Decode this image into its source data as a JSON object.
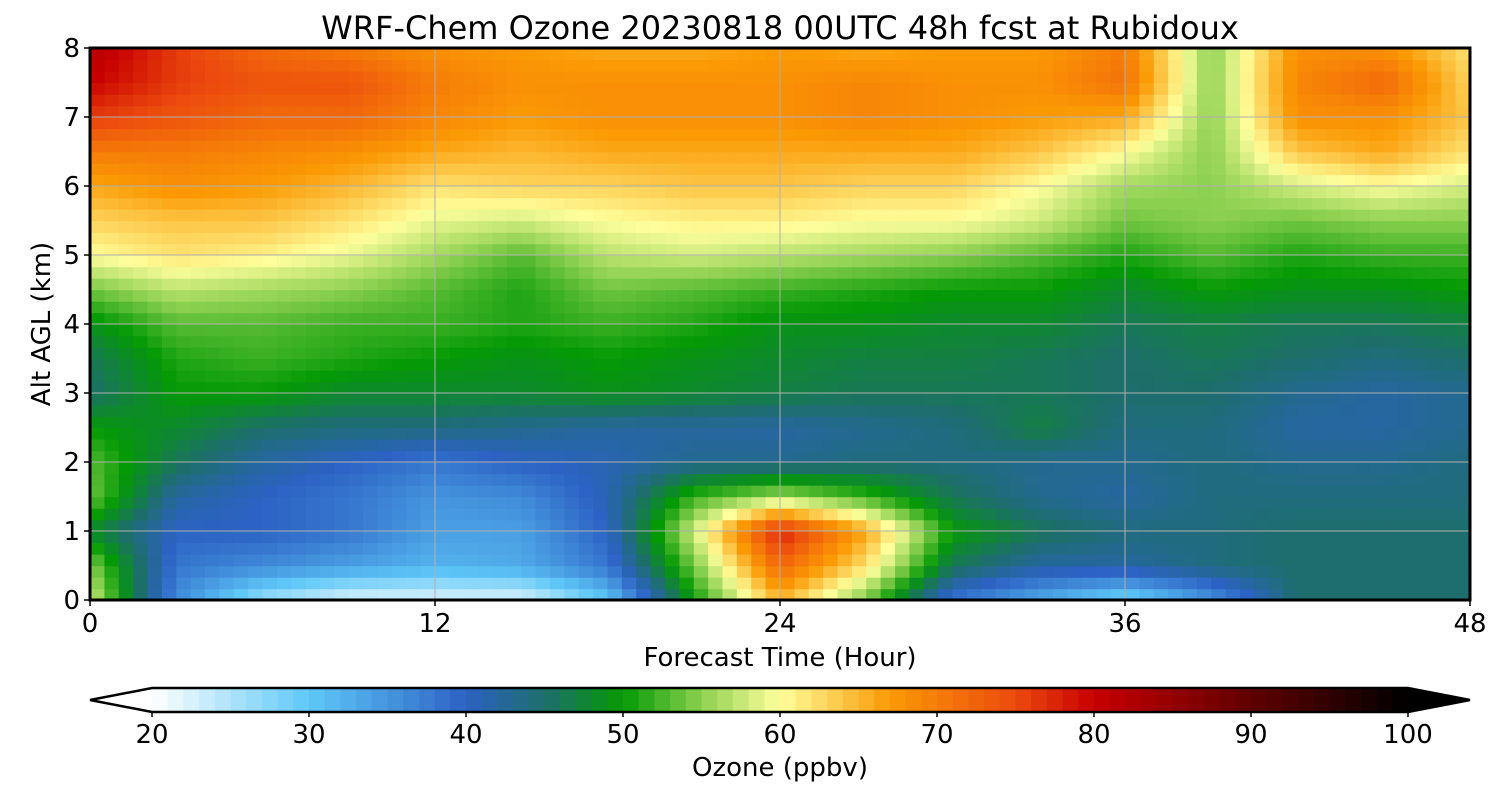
{
  "chart_data": {
    "type": "heatmap",
    "title": "WRF-Chem Ozone  20230818 00UTC 48h fcst at Rubidoux",
    "xlabel": "Forecast Time (Hour)",
    "ylabel": "Alt AGL (km)",
    "xlim": [
      0,
      48
    ],
    "ylim": [
      0,
      8
    ],
    "x_ticks": [
      0,
      12,
      24,
      36,
      48
    ],
    "y_ticks": [
      0,
      1,
      2,
      3,
      4,
      5,
      6,
      7,
      8
    ],
    "grid": true,
    "x": [
      0,
      3,
      6,
      9,
      12,
      15,
      18,
      21,
      24,
      27,
      30,
      33,
      36,
      39,
      42,
      45,
      48
    ],
    "y": [
      0,
      0.5,
      1,
      1.5,
      2,
      2.5,
      3,
      3.5,
      4,
      4.5,
      5,
      5.5,
      6,
      6.5,
      7,
      7.5,
      8
    ],
    "values": [
      [
        58,
        36,
        26,
        22,
        22,
        22,
        30,
        50,
        65,
        54,
        38,
        33,
        28,
        35,
        45,
        45,
        45
      ],
      [
        55,
        38,
        36,
        34,
        32,
        33,
        38,
        54,
        72,
        62,
        46,
        42,
        42,
        44,
        45,
        45,
        45
      ],
      [
        48,
        40,
        40,
        38,
        34,
        34,
        40,
        58,
        78,
        66,
        50,
        46,
        44,
        44,
        45,
        45,
        45
      ],
      [
        54,
        42,
        40,
        38,
        35,
        36,
        41,
        52,
        56,
        52,
        46,
        43,
        42,
        44,
        44,
        44,
        44
      ],
      [
        53,
        46,
        42,
        40,
        38,
        40,
        41,
        43,
        43,
        44,
        44,
        43,
        43,
        44,
        43,
        43,
        44
      ],
      [
        50,
        48,
        45,
        44,
        44,
        43,
        42,
        42,
        42,
        43,
        44,
        47,
        44,
        44,
        42,
        42,
        43
      ],
      [
        45,
        50,
        50,
        48,
        48,
        48,
        49,
        48,
        47,
        46,
        46,
        46,
        45,
        45,
        43,
        42,
        43
      ],
      [
        46,
        51,
        52,
        51,
        50,
        49,
        50,
        49,
        48,
        47,
        47,
        46,
        45,
        46,
        45,
        44,
        45
      ],
      [
        49,
        53,
        53,
        52,
        52,
        51,
        52,
        51,
        49,
        49,
        48,
        48,
        46,
        47,
        46,
        46,
        47
      ],
      [
        54,
        57,
        56,
        55,
        53,
        51,
        54,
        53,
        52,
        51,
        50,
        50,
        48,
        50,
        49,
        49,
        50
      ],
      [
        60,
        62,
        61,
        59,
        56,
        53,
        57,
        58,
        57,
        56,
        55,
        53,
        51,
        53,
        51,
        52,
        52
      ],
      [
        63,
        64,
        64,
        62,
        59,
        58,
        60,
        61,
        61,
        60,
        60,
        58,
        54,
        55,
        54,
        55,
        55
      ],
      [
        66,
        68,
        67,
        65,
        62,
        63,
        63,
        64,
        64,
        63,
        63,
        60,
        56,
        55,
        58,
        60,
        58
      ],
      [
        70,
        70,
        69,
        68,
        66,
        65,
        66,
        66,
        66,
        66,
        66,
        64,
        60,
        55,
        64,
        66,
        62
      ],
      [
        76,
        74,
        72,
        72,
        69,
        67,
        68,
        68,
        68,
        69,
        68,
        67,
        66,
        55,
        68,
        68,
        64
      ],
      [
        80,
        76,
        74,
        74,
        70,
        68,
        68,
        68,
        68,
        69,
        68,
        68,
        71,
        55,
        69,
        72,
        63
      ],
      [
        82,
        76,
        72,
        70,
        68,
        67,
        66,
        66,
        67,
        66,
        67,
        67,
        70,
        55,
        68,
        68,
        62
      ]
    ],
    "colorbar": {
      "label": "Ozone  (ppbv)",
      "min": 20,
      "max": 100,
      "ticks": [
        20,
        30,
        40,
        50,
        60,
        70,
        80,
        90,
        100
      ],
      "extend": "both",
      "stops": [
        [
          20,
          "#ffffff"
        ],
        [
          30,
          "#5ec8f8"
        ],
        [
          40,
          "#2c62c4"
        ],
        [
          45,
          "#1d6e6c"
        ],
        [
          50,
          "#049a04"
        ],
        [
          55,
          "#8cd050"
        ],
        [
          60,
          "#ffff9c"
        ],
        [
          67,
          "#fb9a04"
        ],
        [
          75,
          "#ec4a0e"
        ],
        [
          80,
          "#c80000"
        ],
        [
          90,
          "#600000"
        ],
        [
          100,
          "#000000"
        ]
      ]
    }
  }
}
